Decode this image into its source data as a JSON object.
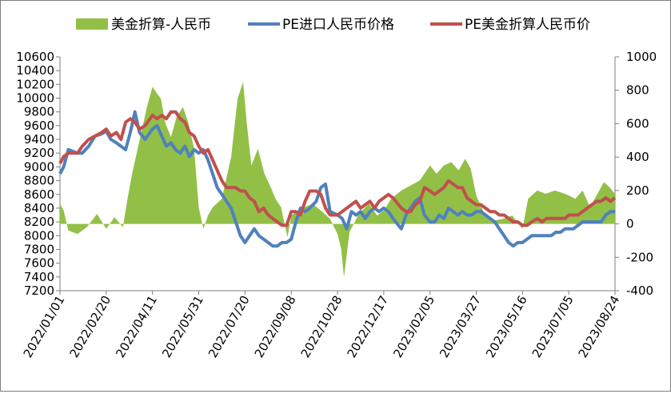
{
  "chart_data": {
    "type": "line",
    "title": "",
    "xlabel": "",
    "ylabel": "",
    "x_ticks": [
      "2022/01/01",
      "2022/02/20",
      "2022/04/11",
      "2022/05/31",
      "2022/07/20",
      "2022/09/08",
      "2022/10/28",
      "2022/12/17",
      "2023/02/05",
      "2023/03/27",
      "2023/05/16",
      "2023/07/05",
      "2023/08/24"
    ],
    "x_range": [
      "2022/01/01",
      "2023/08/24"
    ],
    "y_left": {
      "ylim": [
        7200,
        10600
      ],
      "ticks": [
        7200,
        7400,
        7600,
        7800,
        8000,
        8200,
        8400,
        8600,
        8800,
        9000,
        9200,
        9400,
        9600,
        9800,
        10000,
        10200,
        10400,
        10600
      ]
    },
    "y_right": {
      "ylim": [
        -400,
        1000
      ],
      "ticks": [
        -400,
        -200,
        0,
        200,
        400,
        600,
        800,
        1000
      ]
    },
    "grid": false,
    "legend_position": "top",
    "series": [
      {
        "name": "美金折算-人民币",
        "type": "area",
        "axis": "right",
        "color": "#92c047",
        "x": [
          "2022/01/01",
          "2022/01/05",
          "2022/01/10",
          "2022/01/20",
          "2022/01/30",
          "2022/02/10",
          "2022/02/20",
          "2022/03/01",
          "2022/03/10",
          "2022/03/15",
          "2022/03/20",
          "2022/03/28",
          "2022/04/05",
          "2022/04/11",
          "2022/04/16",
          "2022/04/20",
          "2022/04/25",
          "2022/05/01",
          "2022/05/07",
          "2022/05/14",
          "2022/05/20",
          "2022/05/26",
          "2022/05/31",
          "2022/06/05",
          "2022/06/10",
          "2022/06/15",
          "2022/06/25",
          "2022/07/05",
          "2022/07/12",
          "2022/07/18",
          "2022/07/22",
          "2022/07/27",
          "2022/08/03",
          "2022/08/10",
          "2022/08/16",
          "2022/08/22",
          "2022/08/28",
          "2022/09/04",
          "2022/09/08",
          "2022/09/15",
          "2022/09/22",
          "2022/10/01",
          "2022/10/10",
          "2022/10/20",
          "2022/10/28",
          "2022/11/01",
          "2022/11/04",
          "2022/11/10",
          "2022/11/20",
          "2022/12/01",
          "2022/12/10",
          "2022/12/17",
          "2022/12/25",
          "2023/01/05",
          "2023/01/15",
          "2023/01/25",
          "2023/02/05",
          "2023/02/12",
          "2023/02/20",
          "2023/02/28",
          "2023/03/08",
          "2023/03/15",
          "2023/03/21",
          "2023/03/27",
          "2023/04/05",
          "2023/04/15",
          "2023/04/25",
          "2023/05/05",
          "2023/05/16",
          "2023/05/22",
          "2023/06/01",
          "2023/06/10",
          "2023/06/20",
          "2023/07/01",
          "2023/07/05",
          "2023/07/12",
          "2023/07/20",
          "2023/07/28",
          "2023/08/05",
          "2023/08/12",
          "2023/08/18",
          "2023/08/24"
        ],
        "values": [
          120,
          80,
          -40,
          -60,
          -20,
          60,
          -30,
          40,
          -20,
          150,
          300,
          500,
          700,
          820,
          780,
          750,
          600,
          520,
          640,
          700,
          600,
          450,
          100,
          -30,
          50,
          100,
          150,
          400,
          750,
          850,
          600,
          350,
          450,
          300,
          230,
          150,
          100,
          -80,
          50,
          80,
          100,
          120,
          80,
          30,
          -60,
          -150,
          -320,
          -50,
          60,
          120,
          50,
          80,
          150,
          200,
          230,
          260,
          350,
          300,
          350,
          370,
          320,
          390,
          330,
          170,
          60,
          20,
          30,
          50,
          -30,
          150,
          200,
          180,
          200,
          180,
          170,
          150,
          200,
          100,
          180,
          250,
          220,
          180
        ]
      },
      {
        "name": "PE进口人民币价格",
        "type": "line",
        "axis": "left",
        "color": "#4f81bd",
        "x": [
          "2022/01/01",
          "2022/01/05",
          "2022/01/10",
          "2022/01/20",
          "2022/01/25",
          "2022/02/01",
          "2022/02/08",
          "2022/02/15",
          "2022/02/20",
          "2022/02/25",
          "2022/03/03",
          "2022/03/08",
          "2022/03/13",
          "2022/03/18",
          "2022/03/23",
          "2022/03/28",
          "2022/04/03",
          "2022/04/11",
          "2022/04/16",
          "2022/04/21",
          "2022/04/26",
          "2022/05/01",
          "2022/05/06",
          "2022/05/11",
          "2022/05/16",
          "2022/05/21",
          "2022/05/26",
          "2022/05/31",
          "2022/06/05",
          "2022/06/10",
          "2022/06/15",
          "2022/06/20",
          "2022/06/25",
          "2022/06/30",
          "2022/07/05",
          "2022/07/10",
          "2022/07/15",
          "2022/07/20",
          "2022/07/25",
          "2022/07/30",
          "2022/08/04",
          "2022/08/09",
          "2022/08/14",
          "2022/08/19",
          "2022/08/24",
          "2022/08/29",
          "2022/09/03",
          "2022/09/08",
          "2022/09/13",
          "2022/09/18",
          "2022/09/23",
          "2022/09/28",
          "2022/10/05",
          "2022/10/10",
          "2022/10/15",
          "2022/10/20",
          "2022/10/28",
          "2022/11/02",
          "2022/11/07",
          "2022/11/12",
          "2022/11/17",
          "2022/11/22",
          "2022/11/27",
          "2022/12/02",
          "2022/12/07",
          "2022/12/12",
          "2022/12/17",
          "2022/12/22",
          "2022/12/27",
          "2023/01/05",
          "2023/01/10",
          "2023/01/15",
          "2023/01/20",
          "2023/01/25",
          "2023/01/30",
          "2023/02/05",
          "2023/02/10",
          "2023/02/15",
          "2023/02/20",
          "2023/02/25",
          "2023/03/02",
          "2023/03/07",
          "2023/03/12",
          "2023/03/17",
          "2023/03/22",
          "2023/03/27",
          "2023/04/01",
          "2023/04/06",
          "2023/04/11",
          "2023/04/16",
          "2023/04/21",
          "2023/04/26",
          "2023/05/01",
          "2023/05/06",
          "2023/05/11",
          "2023/05/16",
          "2023/05/21",
          "2023/05/26",
          "2023/06/01",
          "2023/06/06",
          "2023/06/11",
          "2023/06/16",
          "2023/06/21",
          "2023/06/26",
          "2023/07/01",
          "2023/07/05",
          "2023/07/10",
          "2023/07/15",
          "2023/07/20",
          "2023/07/25",
          "2023/07/30",
          "2023/08/04",
          "2023/08/09",
          "2023/08/14",
          "2023/08/19",
          "2023/08/24"
        ],
        "values": [
          8900,
          9000,
          9250,
          9200,
          9200,
          9300,
          9450,
          9480,
          9520,
          9400,
          9350,
          9300,
          9250,
          9500,
          9800,
          9500,
          9400,
          9550,
          9600,
          9450,
          9300,
          9350,
          9250,
          9200,
          9300,
          9150,
          9250,
          9200,
          9250,
          9100,
          8900,
          8700,
          8600,
          8500,
          8400,
          8200,
          8000,
          7900,
          8000,
          8100,
          8000,
          7950,
          7900,
          7850,
          7850,
          7900,
          7900,
          7950,
          8200,
          8400,
          8350,
          8400,
          8500,
          8700,
          8750,
          8350,
          8300,
          8250,
          8100,
          8350,
          8300,
          8350,
          8250,
          8350,
          8400,
          8350,
          8400,
          8350,
          8250,
          8100,
          8300,
          8400,
          8500,
          8550,
          8300,
          8200,
          8200,
          8300,
          8250,
          8400,
          8350,
          8300,
          8350,
          8300,
          8300,
          8350,
          8350,
          8300,
          8250,
          8200,
          8100,
          8000,
          7900,
          7850,
          7900,
          7900,
          7950,
          8000,
          8000,
          8000,
          8000,
          8000,
          8050,
          8050,
          8100,
          8100,
          8100,
          8150,
          8200,
          8200,
          8200,
          8200,
          8200,
          8300,
          8350,
          8350
        ]
      },
      {
        "name": "PE美金折算人民币价",
        "type": "line",
        "axis": "left",
        "color": "#c0504d",
        "x": [
          "2022/01/01",
          "2022/01/05",
          "2022/01/10",
          "2022/01/20",
          "2022/01/25",
          "2022/02/01",
          "2022/02/08",
          "2022/02/15",
          "2022/02/20",
          "2022/02/25",
          "2022/03/03",
          "2022/03/08",
          "2022/03/13",
          "2022/03/18",
          "2022/03/23",
          "2022/03/28",
          "2022/04/03",
          "2022/04/11",
          "2022/04/16",
          "2022/04/21",
          "2022/04/26",
          "2022/05/01",
          "2022/05/06",
          "2022/05/11",
          "2022/05/16",
          "2022/05/21",
          "2022/05/26",
          "2022/05/31",
          "2022/06/05",
          "2022/06/10",
          "2022/06/15",
          "2022/06/20",
          "2022/06/25",
          "2022/06/30",
          "2022/07/05",
          "2022/07/10",
          "2022/07/15",
          "2022/07/20",
          "2022/07/25",
          "2022/07/30",
          "2022/08/04",
          "2022/08/09",
          "2022/08/14",
          "2022/08/19",
          "2022/08/24",
          "2022/08/29",
          "2022/09/03",
          "2022/09/08",
          "2022/09/13",
          "2022/09/18",
          "2022/09/23",
          "2022/09/28",
          "2022/10/05",
          "2022/10/10",
          "2022/10/15",
          "2022/10/20",
          "2022/10/28",
          "2022/11/02",
          "2022/11/07",
          "2022/11/12",
          "2022/11/17",
          "2022/11/22",
          "2022/11/27",
          "2022/12/02",
          "2022/12/07",
          "2022/12/12",
          "2022/12/17",
          "2022/12/22",
          "2022/12/27",
          "2023/01/05",
          "2023/01/10",
          "2023/01/15",
          "2023/01/20",
          "2023/01/25",
          "2023/01/30",
          "2023/02/05",
          "2023/02/10",
          "2023/02/15",
          "2023/02/20",
          "2023/02/25",
          "2023/03/02",
          "2023/03/07",
          "2023/03/12",
          "2023/03/17",
          "2023/03/22",
          "2023/03/27",
          "2023/04/01",
          "2023/04/06",
          "2023/04/11",
          "2023/04/16",
          "2023/04/21",
          "2023/04/26",
          "2023/05/01",
          "2023/05/06",
          "2023/05/11",
          "2023/05/16",
          "2023/05/21",
          "2023/05/26",
          "2023/06/01",
          "2023/06/06",
          "2023/06/11",
          "2023/06/16",
          "2023/06/21",
          "2023/06/26",
          "2023/07/01",
          "2023/07/05",
          "2023/07/10",
          "2023/07/15",
          "2023/07/20",
          "2023/07/25",
          "2023/07/30",
          "2023/08/04",
          "2023/08/09",
          "2023/08/14",
          "2023/08/19",
          "2023/08/24"
        ],
        "values": [
          9050,
          9150,
          9200,
          9200,
          9300,
          9400,
          9450,
          9500,
          9550,
          9450,
          9500,
          9400,
          9650,
          9700,
          9650,
          9550,
          9600,
          9750,
          9700,
          9750,
          9700,
          9800,
          9800,
          9700,
          9650,
          9500,
          9450,
          9300,
          9200,
          9250,
          9100,
          8950,
          8800,
          8700,
          8700,
          8700,
          8650,
          8650,
          8550,
          8500,
          8350,
          8400,
          8300,
          8250,
          8200,
          8150,
          8150,
          8350,
          8350,
          8300,
          8500,
          8650,
          8650,
          8600,
          8400,
          8300,
          8300,
          8350,
          8400,
          8450,
          8500,
          8400,
          8450,
          8500,
          8400,
          8500,
          8550,
          8600,
          8550,
          8400,
          8350,
          8350,
          8450,
          8500,
          8700,
          8650,
          8600,
          8650,
          8700,
          8800,
          8750,
          8700,
          8700,
          8550,
          8500,
          8450,
          8450,
          8400,
          8350,
          8350,
          8300,
          8300,
          8250,
          8200,
          8200,
          8150,
          8150,
          8200,
          8250,
          8200,
          8250,
          8250,
          8250,
          8250,
          8250,
          8300,
          8300,
          8300,
          8350,
          8400,
          8450,
          8500,
          8500,
          8550,
          8500,
          8550
        ]
      }
    ]
  }
}
